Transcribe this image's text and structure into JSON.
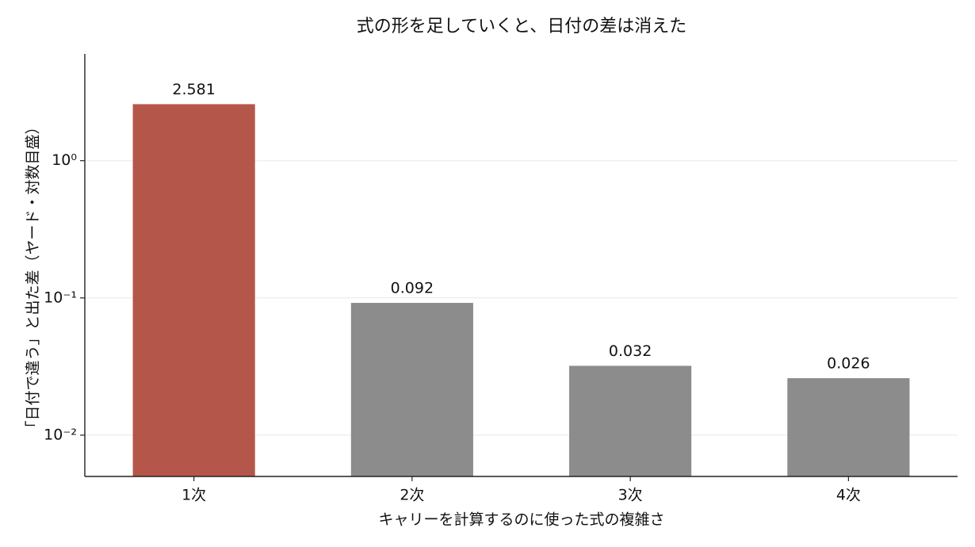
{
  "chart_data": {
    "type": "bar",
    "title": "式の形を足していくと、日付の差は消えた",
    "x_label": "キャリーを計算するのに使った式の複雑さ",
    "y_label": "「日付で違う」と出た差（ヤード・対数目盛）",
    "categories": [
      "1次",
      "2次",
      "3次",
      "4次"
    ],
    "values": [
      2.581,
      0.092,
      0.032,
      0.026
    ],
    "colors": [
      "#b5564a",
      "#8c8c8c",
      "#8c8c8c",
      "#8c8c8c"
    ],
    "log_scale": true,
    "ylim": [
      0.005,
      6
    ],
    "yticks": [
      {
        "value": 0.01,
        "label": "10⁻²"
      },
      {
        "value": 0.1,
        "label": "10⁻¹"
      },
      {
        "value": 1,
        "label": "10⁰"
      }
    ],
    "grid": true
  }
}
